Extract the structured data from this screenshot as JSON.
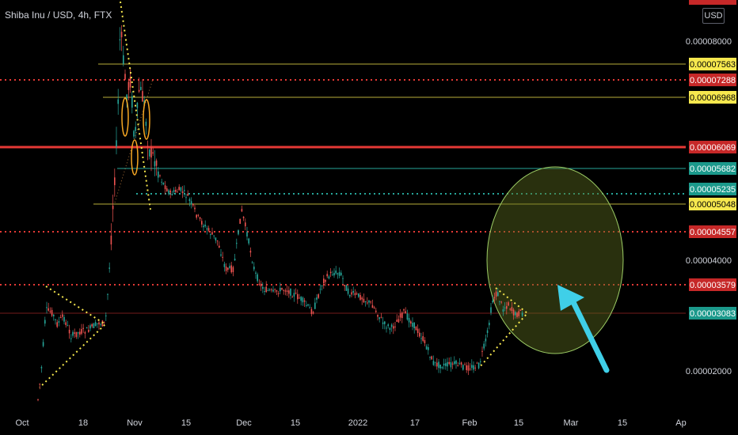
{
  "header": {
    "symbol_title": "Shiba Inu / USD, 4h, FTX",
    "currency_button": "USD"
  },
  "colors": {
    "background": "#000000",
    "up_candle": "#26a69a",
    "down_candle": "#ef5350",
    "red_level": "#c62828",
    "yellow_level": "#f7e84e",
    "teal_level": "#1b998b",
    "cyan_arrow": "#3fcfe8",
    "circle_fill": "#5b6b1f"
  },
  "price_axis": {
    "plain_labels": [
      "0.00008000",
      "0.00004000",
      "0.00002000"
    ],
    "level_badges": [
      {
        "value": "0.00007563",
        "style": "yellow"
      },
      {
        "value": "0.00007288",
        "style": "red"
      },
      {
        "value": "0.00006968",
        "style": "yellow"
      },
      {
        "value": "0.00006069",
        "style": "red"
      },
      {
        "value": "0.00005682",
        "style": "teal"
      },
      {
        "value": "0.00005235",
        "style": "teal"
      },
      {
        "value": "0.00005048",
        "style": "yellow"
      },
      {
        "value": "0.00004557",
        "style": "red"
      },
      {
        "value": "0.00003579",
        "style": "red"
      },
      {
        "value": "0.00003083",
        "style": "teal"
      }
    ]
  },
  "time_axis": {
    "labels": [
      "Oct",
      "18",
      "Nov",
      "15",
      "Dec",
      "15",
      "2022",
      "17",
      "Feb",
      "15",
      "Mar",
      "15",
      "Ap"
    ]
  },
  "chart_data": {
    "type": "candlestick",
    "title": "Shiba Inu / USD, 4h, FTX",
    "approx_close_path": [
      {
        "x": "Oct 1",
        "y": 7.4e-06
      },
      {
        "x": "Oct 4",
        "y": 2.4e-05
      },
      {
        "x": "Oct 8",
        "y": 3.1e-05
      },
      {
        "x": "Oct 12",
        "y": 2.6e-05
      },
      {
        "x": "Oct 18",
        "y": 3e-05
      },
      {
        "x": "Oct 24",
        "y": 4e-05
      },
      {
        "x": "Oct 27",
        "y": 7e-05
      },
      {
        "x": "Oct 28",
        "y": 8.8e-05
      },
      {
        "x": "Oct 30",
        "y": 6e-05
      },
      {
        "x": "Nov 4",
        "y": 6.4e-05
      },
      {
        "x": "Nov 10",
        "y": 5.3e-05
      },
      {
        "x": "Nov 20",
        "y": 4.5e-05
      },
      {
        "x": "Dec 1",
        "y": 4.8e-05
      },
      {
        "x": "Dec 5",
        "y": 3.6e-05
      },
      {
        "x": "Dec 15",
        "y": 3.3e-05
      },
      {
        "x": "Dec 27",
        "y": 3.8e-05
      },
      {
        "x": "Jan 5",
        "y": 3.4e-05
      },
      {
        "x": "Jan 15",
        "y": 2.9e-05
      },
      {
        "x": "Jan 22",
        "y": 2e-05
      },
      {
        "x": "Feb 1",
        "y": 2.1e-05
      },
      {
        "x": "Feb 7",
        "y": 3.5e-05
      },
      {
        "x": "Feb 12",
        "y": 3.1e-05
      }
    ],
    "horizontal_levels": [
      7.563e-05,
      7.288e-05,
      6.968e-05,
      6.069e-05,
      5.682e-05,
      5.235e-05,
      5.048e-05,
      4.557e-05,
      3.579e-05,
      3.083e-05
    ],
    "ylabel_ticks": [
      8e-05,
      4e-05,
      2e-05
    ],
    "annotations": [
      "symmetrical triangle (Oct)",
      "symmetrical triangle (Feb)",
      "target circle",
      "arrow"
    ]
  }
}
